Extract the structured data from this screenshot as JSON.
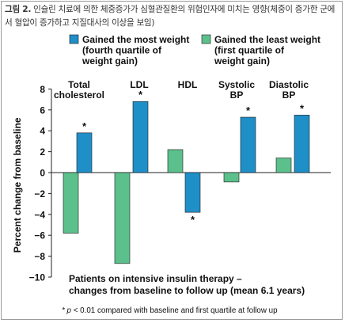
{
  "caption": {
    "prefix": "그림 2.",
    "text": " 인슐린 치료에 의한 체중증가가 심혈관질환의 위험인자에 미치는 영향(체중이 증가한 군에서 혈압이 증가하고 지질대사의 이상을 보임)"
  },
  "footnote": {
    "prefix": "* p",
    "text": " < 0.01 compared  with baseline and first  quartile at follow up"
  },
  "colors": {
    "most": "#1f8fc8",
    "least": "#5cc08c",
    "axis": "#222222",
    "text": "#111111"
  },
  "chart_data": {
    "type": "bar",
    "categories": [
      "Total\ncholesterol",
      "LDL",
      "HDL",
      "Systolic\nBP",
      "Diastolic\nBP"
    ],
    "series": [
      {
        "name": "Gained the least weight\n(first quartile of\nweight gain)",
        "color": "#5cc08c",
        "values": [
          -5.8,
          -8.7,
          2.2,
          -0.9,
          1.4
        ],
        "significant": [
          false,
          false,
          false,
          false,
          false
        ]
      },
      {
        "name": "Gained the most weight\n(fourth quartile of\nweight gain)",
        "color": "#1f8fc8",
        "values": [
          3.8,
          6.8,
          -3.8,
          5.3,
          5.5
        ],
        "significant": [
          true,
          true,
          true,
          true,
          true
        ]
      }
    ],
    "significance_marker": "*",
    "ylabel": "Percent change from baseline",
    "xlabel": "Patients on intensive insulin therapy –\nchanges from baseline to follow up (mean 6.1 years)",
    "ylim": [
      -10,
      8
    ],
    "yticks": [
      8,
      6,
      4,
      2,
      0,
      -2,
      -4,
      -6,
      -8,
      -10
    ],
    "ytick_labels": [
      "8",
      "6",
      "4",
      "2",
      "0",
      "−2",
      "−4",
      "−6",
      "−8",
      "−10"
    ],
    "legend": [
      {
        "series": 1,
        "label": "Gained the most weight\n(fourth quartile of\nweight gain)"
      },
      {
        "series": 0,
        "label": "Gained the least weight\n(first quartile of\nweight gain)"
      }
    ],
    "legend_position": "top",
    "grid": false
  }
}
